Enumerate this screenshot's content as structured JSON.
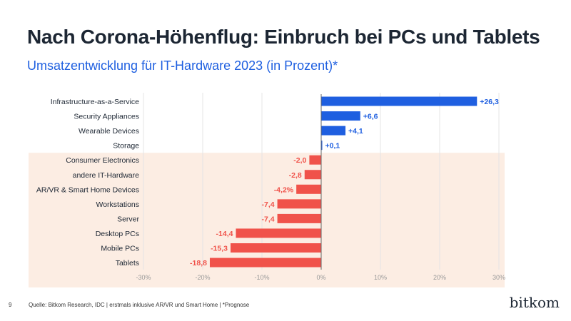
{
  "header": {
    "title": "Nach Corona-Höhenflug: Einbruch bei PCs und Tablets",
    "subtitle": "Umsatzentwicklung für IT-Hardware 2023 (in Prozent)*"
  },
  "footer": {
    "page": "9",
    "source": "Quelle: Bitkom Research, IDC | erstmals inklusive AR/VR und Smart Home | *Prognose",
    "logo": "bitkom"
  },
  "colors": {
    "positive": "#1f5fe0",
    "negative": "#f0524a",
    "highlight_band": "#fcede3"
  },
  "chart_data": {
    "type": "bar",
    "orientation": "horizontal",
    "categories": [
      "Infrastructure-as-a-Service",
      "Security Appliances",
      "Wearable Devices",
      "Storage",
      "Consumer Electronics",
      "andere IT-Hardware",
      "AR/VR & Smart Home Devices",
      "Workstations",
      "Server",
      "Desktop PCs",
      "Mobile PCs",
      "Tablets"
    ],
    "values": [
      26.3,
      6.6,
      4.1,
      0.1,
      -2.0,
      -2.8,
      -4.2,
      -7.4,
      -7.4,
      -14.4,
      -15.3,
      -18.8
    ],
    "data_labels": [
      "+26,3",
      "+6,6",
      "+4,1",
      "+0,1",
      "-2,0",
      "-2,8",
      "-4,2%",
      "-7,4",
      "-7,4",
      "-14,4",
      "-15,3",
      "-18,8"
    ],
    "xlim": [
      -30,
      30
    ],
    "xticks": [
      "-30%",
      "-20%",
      "-10%",
      "0%",
      "10%",
      "20%",
      "30%"
    ],
    "grid": true,
    "highlight": "negative categories"
  }
}
